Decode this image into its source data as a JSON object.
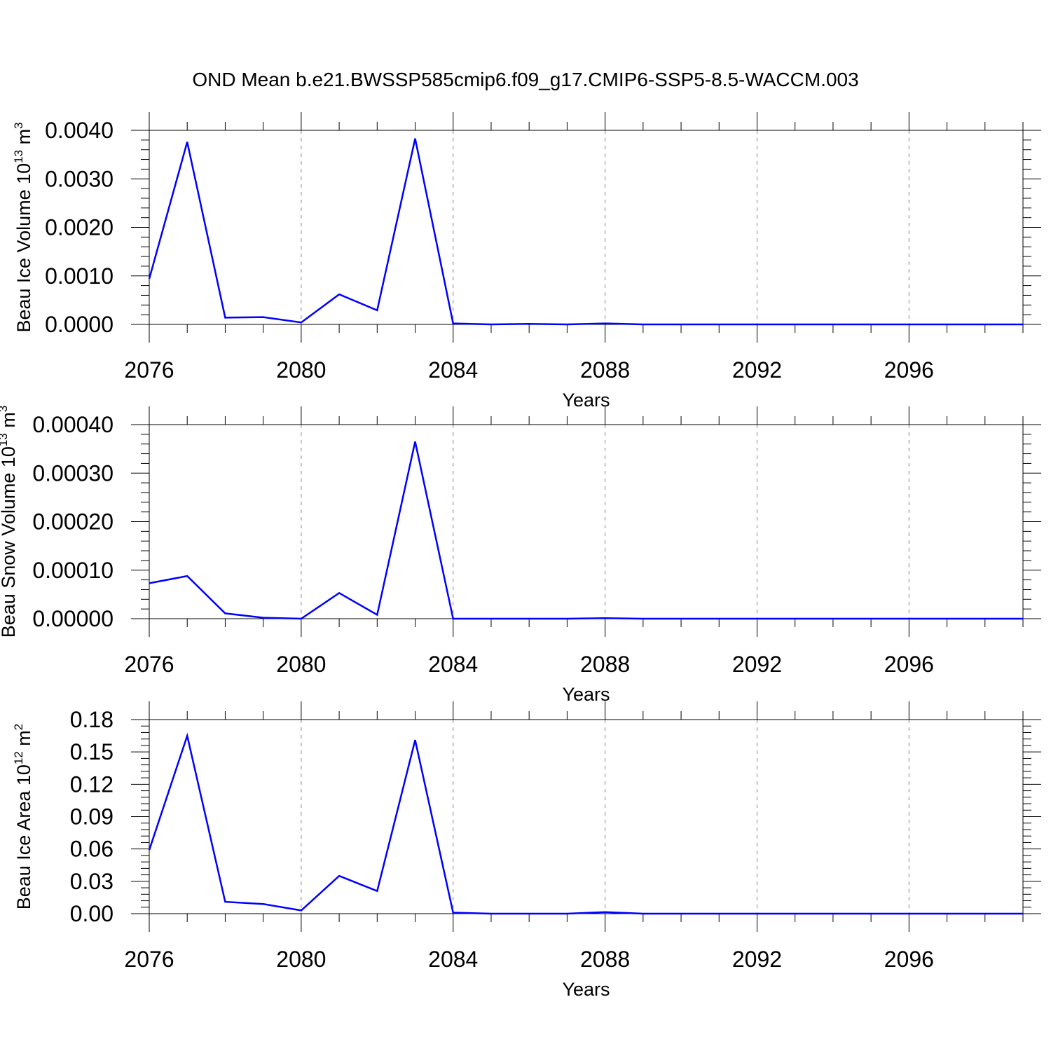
{
  "title": "OND Mean b.e21.BWSSP585cmip6.f09_g17.CMIP6-SSP5-8.5-WACCM.003",
  "colors": {
    "line": "#0000ff",
    "axes": "#000000",
    "gridline": "#888888"
  },
  "chart_data": [
    {
      "type": "line",
      "xlabel": "Years",
      "ylabel": {
        "prefix": "Beau Ice Volume 10",
        "exponent": "13",
        "unit": " m",
        "unit_exponent": "3"
      },
      "xlim": [
        2076,
        2099
      ],
      "ylim": [
        0,
        0.004
      ],
      "x_ticks": [
        "2076",
        "2080",
        "2084",
        "2088",
        "2092",
        "2096"
      ],
      "y_ticks": [
        "0.0000",
        "0.0010",
        "0.0020",
        "0.0030",
        "0.0040"
      ],
      "grid": "vertical dashed at major ticks",
      "x": [
        2076,
        2077,
        2078,
        2079,
        2080,
        2081,
        2082,
        2083,
        2084,
        2085,
        2086,
        2087,
        2088,
        2089,
        2090,
        2091,
        2092,
        2093,
        2094,
        2095,
        2096,
        2097,
        2098,
        2099
      ],
      "values": [
        0.00094,
        0.00376,
        0.00014,
        0.00015,
        4e-05,
        0.00062,
        0.00029,
        0.00383,
        2e-05,
        0.0,
        1e-05,
        0.0,
        2e-05,
        0.0,
        0.0,
        0.0,
        0.0,
        0.0,
        0.0,
        0.0,
        0.0,
        0.0,
        0.0,
        0.0
      ]
    },
    {
      "type": "line",
      "xlabel": "Years",
      "ylabel": {
        "prefix": "Beau Snow Volume 10",
        "exponent": "13",
        "unit": " m",
        "unit_exponent": "3"
      },
      "xlim": [
        2076,
        2099
      ],
      "ylim": [
        0,
        0.0004
      ],
      "x_ticks": [
        "2076",
        "2080",
        "2084",
        "2088",
        "2092",
        "2096"
      ],
      "y_ticks": [
        "0.00000",
        "0.00010",
        "0.00020",
        "0.00030",
        "0.00040"
      ],
      "grid": "vertical dashed at major ticks",
      "x": [
        2076,
        2077,
        2078,
        2079,
        2080,
        2081,
        2082,
        2083,
        2084,
        2085,
        2086,
        2087,
        2088,
        2089,
        2090,
        2091,
        2092,
        2093,
        2094,
        2095,
        2096,
        2097,
        2098,
        2099
      ],
      "values": [
        7.3e-05,
        8.8e-05,
        1.1e-05,
        2e-06,
        0.0,
        5.3e-05,
        8e-06,
        0.000365,
        0.0,
        0.0,
        0.0,
        0.0,
        1e-06,
        0.0,
        0.0,
        0.0,
        0.0,
        0.0,
        0.0,
        0.0,
        0.0,
        0.0,
        0.0,
        0.0
      ]
    },
    {
      "type": "line",
      "xlabel": "Years",
      "ylabel": {
        "prefix": "Beau Ice Area 10",
        "exponent": "12",
        "unit": " m",
        "unit_exponent": "2"
      },
      "xlim": [
        2076,
        2099
      ],
      "ylim": [
        0,
        0.18
      ],
      "x_ticks": [
        "2076",
        "2080",
        "2084",
        "2088",
        "2092",
        "2096"
      ],
      "y_ticks": [
        "0.00",
        "0.03",
        "0.06",
        "0.09",
        "0.12",
        "0.15",
        "0.18"
      ],
      "grid": "vertical dashed at major ticks",
      "x": [
        2076,
        2077,
        2078,
        2079,
        2080,
        2081,
        2082,
        2083,
        2084,
        2085,
        2086,
        2087,
        2088,
        2089,
        2090,
        2091,
        2092,
        2093,
        2094,
        2095,
        2096,
        2097,
        2098,
        2099
      ],
      "values": [
        0.059,
        0.165,
        0.011,
        0.009,
        0.003,
        0.035,
        0.021,
        0.161,
        0.001,
        0.0,
        0.0,
        0.0,
        0.0015,
        0.0,
        0.0,
        0.0,
        0.0,
        0.0,
        0.0,
        0.0,
        0.0,
        0.0,
        0.0,
        0.0
      ]
    }
  ]
}
